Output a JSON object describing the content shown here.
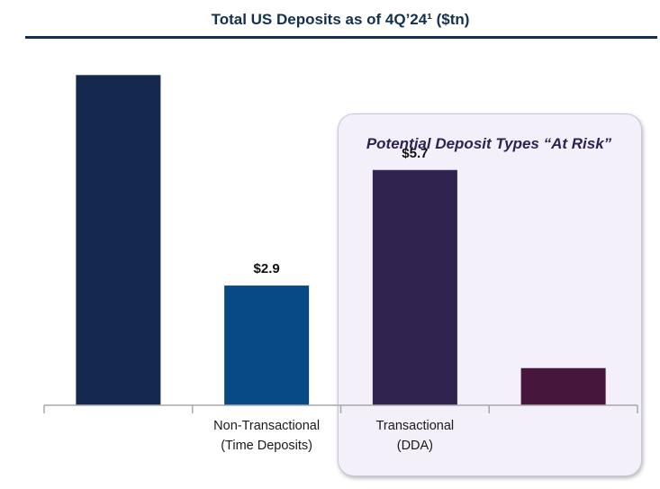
{
  "chart_data": {
    "type": "bar",
    "title": "Total US Deposits as of 4Q’24¹ ($tn)",
    "categories": [
      "",
      "Non-Transactional\n(Time Deposits)",
      "Transactional\n(DDA)",
      ""
    ],
    "values": [
      8.0,
      2.9,
      5.7,
      0.9
    ],
    "data_labels": [
      "",
      "$2.9",
      "$5.7",
      ""
    ],
    "colors": [
      "#14294d",
      "#074a85",
      "#302350",
      "#46163c"
    ],
    "ylim": [
      0,
      8.4
    ],
    "grid": false,
    "highlight": {
      "label": "Potential Deposit Types “At Risk”",
      "categories": [
        2,
        3
      ]
    }
  }
}
